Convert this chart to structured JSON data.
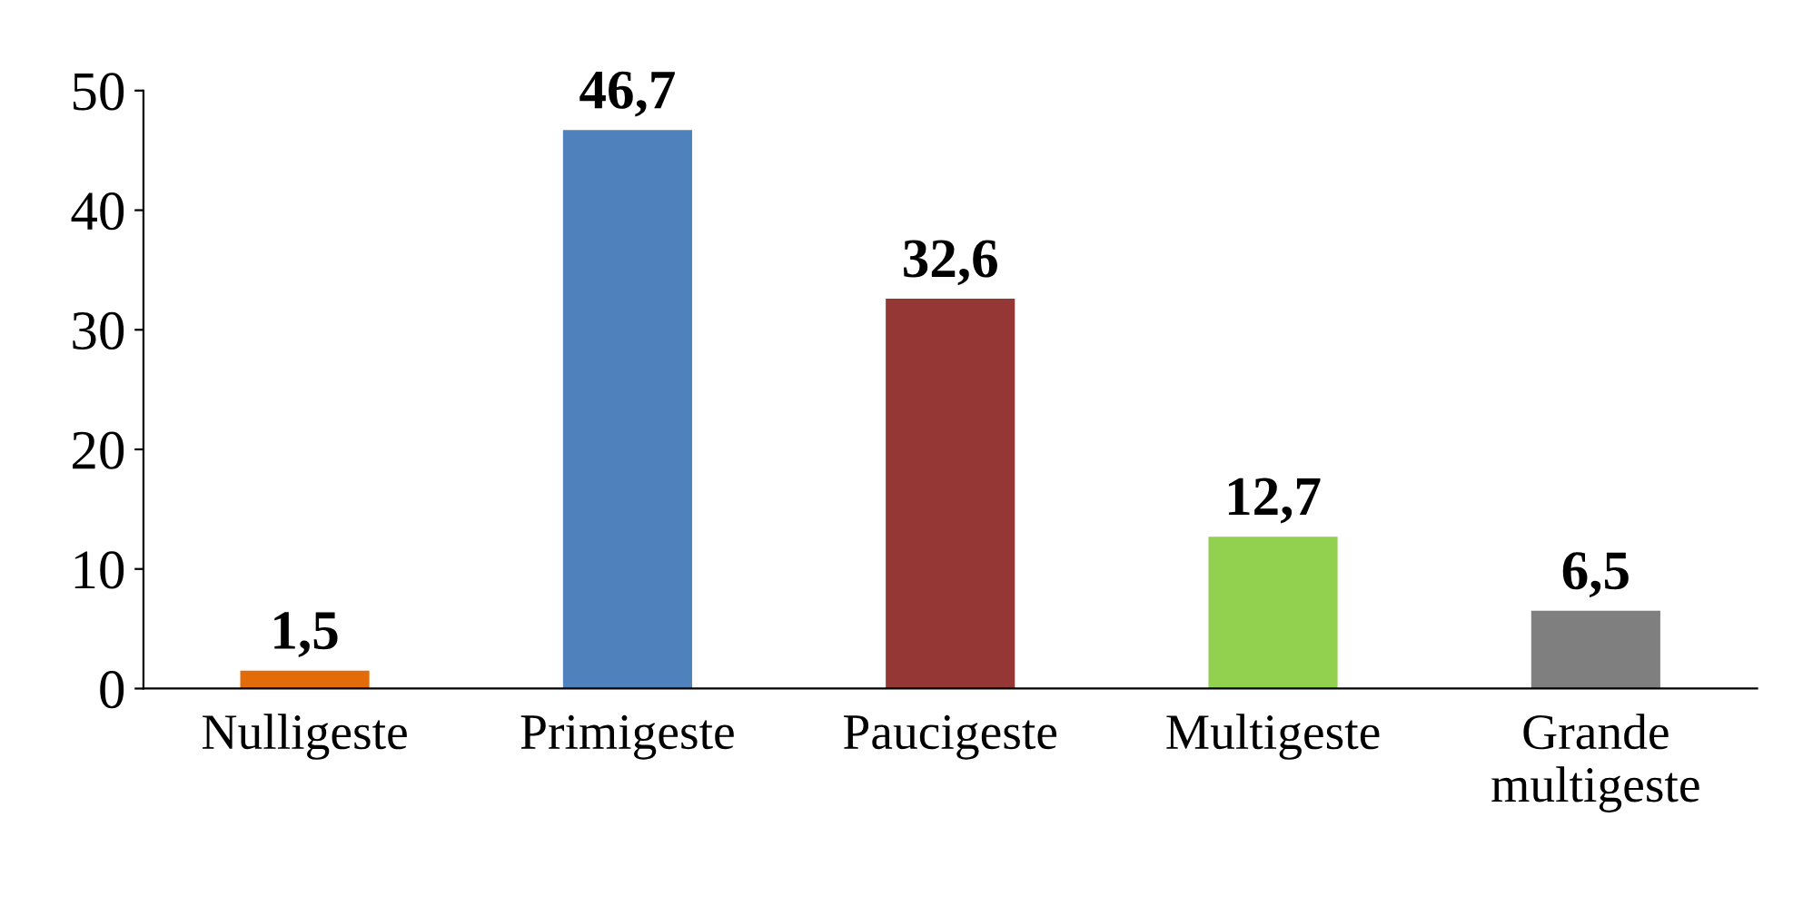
{
  "chart_data": {
    "type": "bar",
    "categories": [
      "Nulligeste",
      "Primigeste",
      "Paucigeste",
      "Multigeste",
      "Grande\nmultigeste"
    ],
    "values": [
      1.5,
      46.7,
      32.6,
      12.7,
      6.5
    ],
    "colors": [
      "#e36c0a",
      "#4f81bd",
      "#953735",
      "#92d050",
      "#7f7f7f"
    ],
    "value_labels": [
      "1,5",
      "46,7",
      "32,6",
      "12,7",
      "6,5"
    ],
    "ylim": [
      0,
      50
    ],
    "yticks": [
      0,
      10,
      20,
      30,
      40,
      50
    ],
    "grid": false,
    "legend": false
  }
}
